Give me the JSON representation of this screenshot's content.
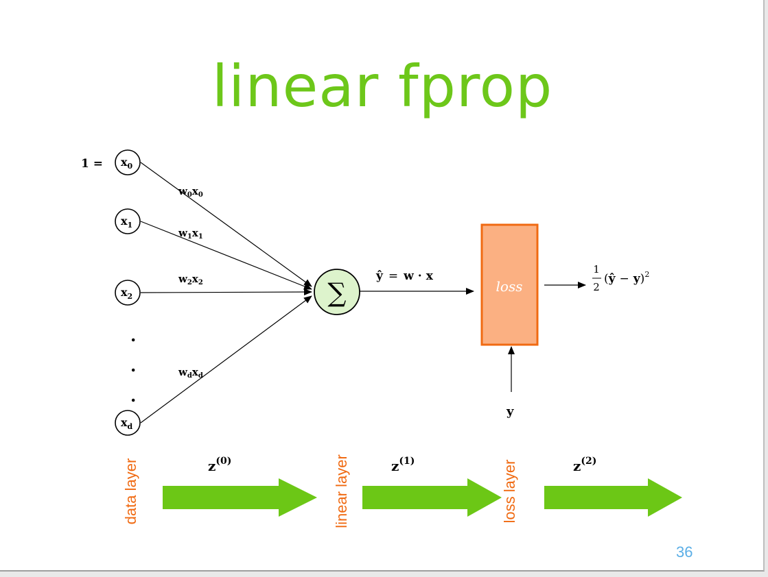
{
  "slide": {
    "title": "linear fprop",
    "page_number": "36"
  },
  "colors": {
    "title": "#6dc71a",
    "layer_label": "#f06a12",
    "page_number": "#5aaee6",
    "arrow_fill": "#6cc716",
    "sum_node_fill": "#ddf3cc",
    "loss_box_fill": "#fbb082",
    "loss_box_stroke": "#f06a12",
    "line": "#000000"
  },
  "inputs": [
    {
      "label": "x",
      "sub": "0",
      "prefix": "1 ="
    },
    {
      "label": "x",
      "sub": "1",
      "prefix": ""
    },
    {
      "label": "x",
      "sub": "2",
      "prefix": ""
    },
    {
      "label": "x",
      "sub": "d",
      "prefix": ""
    }
  ],
  "weights": [
    {
      "w": "w",
      "wsub": "0",
      "x": "x",
      "xsub": "0"
    },
    {
      "w": "w",
      "wsub": "1",
      "x": "x",
      "xsub": "1"
    },
    {
      "w": "w",
      "wsub": "2",
      "x": "x",
      "xsub": "2"
    },
    {
      "w": "w",
      "wsub": "d",
      "x": "x",
      "xsub": "d"
    }
  ],
  "ellipsis": ".",
  "sum_node": {
    "symbol": "∑"
  },
  "prediction": {
    "yhat": "ŷ",
    "eq": "=",
    "w": "w",
    "dot": "·",
    "x": "x"
  },
  "loss_box": {
    "label": "loss"
  },
  "loss_output": {
    "frac_num": "1",
    "frac_den": "2",
    "open": "(",
    "yhat": "ŷ",
    "minus": "−",
    "y": "y",
    "close": ")",
    "exp": "2"
  },
  "target": {
    "label": "y"
  },
  "layers": [
    {
      "label": "data layer"
    },
    {
      "label": "linear layer"
    },
    {
      "label": "loss layer"
    }
  ],
  "flows": [
    {
      "base": "z",
      "sup": "(0)"
    },
    {
      "base": "z",
      "sup": "(1)"
    },
    {
      "base": "z",
      "sup": "(2)"
    }
  ]
}
